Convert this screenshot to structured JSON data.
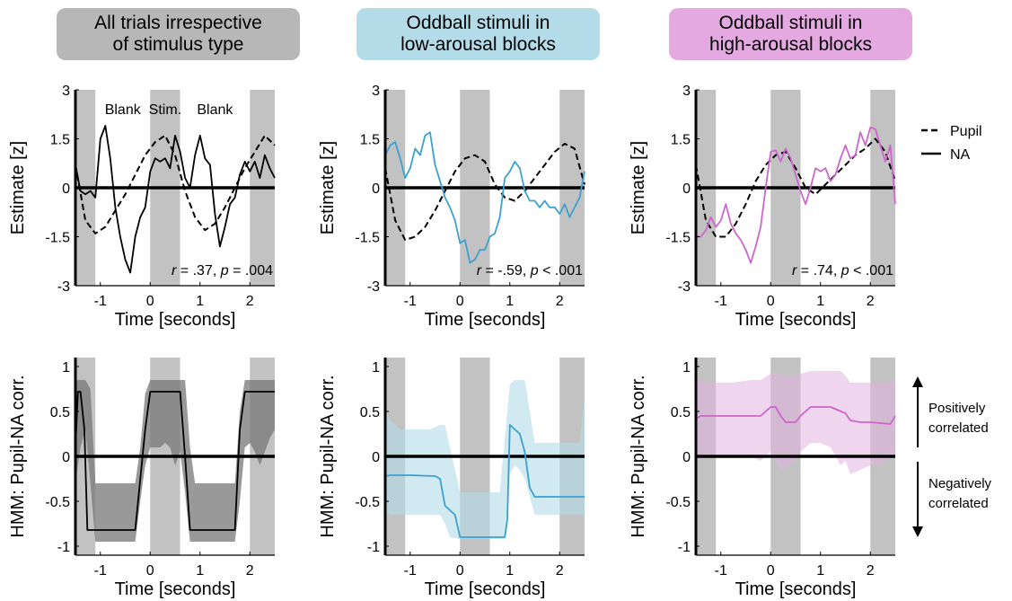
{
  "headers": [
    {
      "line1": "All trials irrespective",
      "line2": "of stimulus type",
      "bg": "#b7b7b7"
    },
    {
      "line1": "Oddball stimuli in",
      "line2": "low-arousal blocks",
      "bg": "#b3dbe8"
    },
    {
      "line1": "Oddball stimuli in",
      "line2": "high-arousal blocks",
      "bg": "#e4a9e0"
    }
  ],
  "colors": {
    "panel1": "#000000",
    "panel2": "#3aa1d0",
    "panel3": "#cc66cc",
    "shade": "#c2c2c2",
    "band1": "#777777",
    "band2": "#b3dbe8",
    "band3": "#e4b2e2"
  },
  "legend": {
    "pupil": "Pupil",
    "na": "NA"
  },
  "side_annotations": {
    "positive": {
      "line1": "Positively",
      "line2": "correlated"
    },
    "negative": {
      "line1": "Negatively",
      "line2": "correlated"
    }
  },
  "chart_data": [
    {
      "type": "line",
      "row": 0,
      "col": 0,
      "xlabel": "Time [seconds]",
      "ylabel": "Estimate [z]",
      "xlim": [
        -1.5,
        2.5
      ],
      "ylim": [
        -3,
        3
      ],
      "xticks": [
        -1,
        0,
        1,
        2
      ],
      "yticks": [
        -3,
        -1.5,
        0,
        1.5,
        3
      ],
      "ytick_labels": [
        "-3",
        "-1.5",
        "0",
        "1.5",
        "3"
      ],
      "shaded_x": [
        [
          -1.5,
          -1.1
        ],
        [
          0,
          0.6
        ],
        [
          2,
          2.5
        ]
      ],
      "period_labels": [
        "Blank",
        "Stim.",
        "Blank"
      ],
      "stat": {
        "r": ".37",
        "p_op": "=",
        "p": ".004"
      },
      "series": [
        {
          "name": "Pupil",
          "style": "dashed",
          "x": [
            -1.5,
            -1.3,
            -1.1,
            -0.9,
            -0.7,
            -0.5,
            -0.3,
            -0.1,
            0.1,
            0.3,
            0.5,
            0.7,
            0.9,
            1.1,
            1.3,
            1.5,
            1.7,
            1.9,
            2.1,
            2.3,
            2.5
          ],
          "y": [
            0.7,
            -1.0,
            -1.4,
            -1.2,
            -0.7,
            -0.2,
            0.4,
            1.0,
            1.4,
            1.6,
            1.0,
            -0.1,
            -0.9,
            -1.3,
            -1.1,
            -0.6,
            0.0,
            0.6,
            1.1,
            1.6,
            1.3
          ]
        },
        {
          "name": "NA",
          "style": "solid",
          "x": [
            -1.5,
            -1.4,
            -1.3,
            -1.2,
            -1.1,
            -1.0,
            -0.9,
            -0.8,
            -0.7,
            -0.6,
            -0.5,
            -0.4,
            -0.3,
            -0.2,
            -0.1,
            0.0,
            0.1,
            0.2,
            0.3,
            0.4,
            0.5,
            0.6,
            0.7,
            0.8,
            0.9,
            1.0,
            1.1,
            1.2,
            1.3,
            1.4,
            1.5,
            1.6,
            1.7,
            1.8,
            1.9,
            2.0,
            2.1,
            2.2,
            2.3,
            2.4,
            2.5
          ],
          "y": [
            0.7,
            -0.1,
            -0.2,
            -0.1,
            -0.3,
            1.5,
            1.9,
            0.9,
            -0.6,
            -1.5,
            -2.2,
            -2.6,
            -1.5,
            -0.9,
            -0.6,
            0.5,
            0.9,
            0.8,
            0.9,
            0.6,
            1.6,
            1.1,
            0.3,
            0.0,
            1.0,
            1.6,
            0.9,
            0.7,
            -0.8,
            -1.8,
            -1.2,
            -0.5,
            -0.3,
            0.4,
            0.8,
            0.5,
            0.8,
            0.3,
            1.0,
            0.6,
            0.3
          ]
        }
      ]
    },
    {
      "type": "line",
      "row": 0,
      "col": 1,
      "xlabel": "Time [seconds]",
      "ylabel": "Estimate [z]",
      "xlim": [
        -1.5,
        2.5
      ],
      "ylim": [
        -3,
        3
      ],
      "xticks": [
        -1,
        0,
        1,
        2
      ],
      "yticks": [
        -3,
        -1.5,
        0,
        1.5,
        3
      ],
      "ytick_labels": [
        "-3",
        "-1.5",
        "0",
        "1.5",
        "3"
      ],
      "shaded_x": [
        [
          -1.5,
          -1.1
        ],
        [
          0,
          0.6
        ],
        [
          2,
          2.5
        ]
      ],
      "stat": {
        "r": "-.59",
        "p_op": "<",
        "p": ".001"
      },
      "series": [
        {
          "name": "Pupil",
          "style": "dashed",
          "x": [
            -1.5,
            -1.3,
            -1.1,
            -0.9,
            -0.7,
            -0.5,
            -0.3,
            -0.1,
            0.1,
            0.3,
            0.5,
            0.7,
            0.9,
            1.1,
            1.3,
            1.5,
            1.7,
            1.9,
            2.1,
            2.3,
            2.5
          ],
          "y": [
            0.6,
            -1.0,
            -1.6,
            -1.5,
            -1.2,
            -0.7,
            -0.1,
            0.5,
            0.9,
            1.0,
            0.8,
            0.1,
            -0.3,
            -0.4,
            -0.1,
            0.3,
            0.7,
            1.1,
            1.35,
            1.2,
            0.1
          ]
        },
        {
          "name": "NA",
          "style": "solid",
          "x": [
            -1.5,
            -1.4,
            -1.3,
            -1.2,
            -1.1,
            -1.0,
            -0.9,
            -0.8,
            -0.7,
            -0.6,
            -0.5,
            -0.4,
            -0.3,
            -0.2,
            -0.1,
            0.0,
            0.1,
            0.2,
            0.3,
            0.4,
            0.5,
            0.6,
            0.7,
            0.8,
            0.9,
            1.0,
            1.1,
            1.2,
            1.3,
            1.4,
            1.5,
            1.6,
            1.7,
            1.8,
            1.9,
            2.0,
            2.1,
            2.2,
            2.3,
            2.4,
            2.5
          ],
          "y": [
            1.0,
            1.3,
            1.4,
            0.9,
            0.3,
            0.6,
            1.2,
            1.0,
            1.6,
            1.7,
            0.7,
            0.2,
            -0.3,
            -0.6,
            -1.0,
            -1.7,
            -1.6,
            -2.3,
            -2.2,
            -1.9,
            -1.9,
            -1.5,
            -1.4,
            -0.9,
            0.3,
            0.5,
            0.8,
            0.6,
            -0.1,
            -0.4,
            -0.4,
            -0.6,
            -0.4,
            -0.6,
            -0.6,
            -0.8,
            -0.5,
            -0.9,
            -0.6,
            -0.3,
            0.5
          ]
        }
      ]
    },
    {
      "type": "line",
      "row": 0,
      "col": 2,
      "xlabel": "Time [seconds]",
      "ylabel": "Estimate [z]",
      "xlim": [
        -1.5,
        2.5
      ],
      "ylim": [
        -3,
        3
      ],
      "xticks": [
        -1,
        0,
        1,
        2
      ],
      "yticks": [
        -3,
        -1.5,
        0,
        1.5,
        3
      ],
      "ytick_labels": [
        "-3",
        "-1.5",
        "0",
        "1.5",
        "3"
      ],
      "shaded_x": [
        [
          -1.5,
          -1.1
        ],
        [
          0,
          0.6
        ],
        [
          2,
          2.5
        ]
      ],
      "stat": {
        "r": ".74",
        "p_op": "<",
        "p": ".001"
      },
      "series": [
        {
          "name": "Pupil",
          "style": "dashed",
          "x": [
            -1.5,
            -1.3,
            -1.1,
            -0.9,
            -0.7,
            -0.5,
            -0.3,
            -0.1,
            0.1,
            0.3,
            0.5,
            0.7,
            0.9,
            1.1,
            1.3,
            1.5,
            1.7,
            1.9,
            2.1,
            2.3,
            2.5
          ],
          "y": [
            0.7,
            -1.0,
            -1.5,
            -1.5,
            -1.1,
            -0.5,
            0.2,
            0.7,
            1.0,
            1.1,
            0.6,
            0.0,
            -0.2,
            0.1,
            0.4,
            0.7,
            1.0,
            1.2,
            1.5,
            1.1,
            0.2
          ]
        },
        {
          "name": "NA",
          "style": "solid",
          "x": [
            -1.5,
            -1.4,
            -1.3,
            -1.2,
            -1.1,
            -1.0,
            -0.9,
            -0.8,
            -0.7,
            -0.6,
            -0.5,
            -0.4,
            -0.3,
            -0.2,
            -0.1,
            0.0,
            0.1,
            0.2,
            0.3,
            0.4,
            0.5,
            0.6,
            0.7,
            0.8,
            0.9,
            1.0,
            1.1,
            1.2,
            1.3,
            1.4,
            1.5,
            1.6,
            1.7,
            1.8,
            1.9,
            2.0,
            2.1,
            2.2,
            2.3,
            2.4,
            2.5
          ],
          "y": [
            -1.5,
            -1.5,
            -1.3,
            -0.9,
            -1.2,
            -1.0,
            -0.5,
            -1.1,
            -1.4,
            -1.6,
            -1.9,
            -2.3,
            -1.8,
            -1.2,
            0.0,
            1.1,
            1.15,
            0.8,
            1.2,
            0.9,
            0.4,
            -0.1,
            -0.5,
            0.0,
            0.6,
            0.5,
            0.6,
            0.2,
            0.4,
            0.9,
            1.3,
            0.9,
            1.0,
            1.7,
            1.3,
            1.85,
            1.8,
            1.3,
            0.8,
            1.3,
            -0.5
          ]
        }
      ]
    },
    {
      "type": "line",
      "row": 1,
      "col": 0,
      "xlabel": "Time [seconds]",
      "ylabel": "HMM: Pupil-NA corr.",
      "xlim": [
        -1.5,
        2.5
      ],
      "ylim": [
        -1.1,
        1.1
      ],
      "xticks": [
        -1,
        0,
        1,
        2
      ],
      "yticks": [
        -1,
        -0.5,
        0,
        0.5,
        1
      ],
      "ytick_labels": [
        "-1",
        "-0.5",
        "0",
        "0.5",
        "1"
      ],
      "shaded_x": [
        [
          -1.5,
          -1.1
        ],
        [
          0,
          0.6
        ],
        [
          2,
          2.5
        ]
      ],
      "series": [
        {
          "name": "HMM",
          "style": "solid",
          "x": [
            -1.5,
            -1.45,
            -1.4,
            -1.32,
            -1.26,
            -1.0,
            -0.5,
            -0.3,
            -0.1,
            0.0,
            0.2,
            0.6,
            0.7,
            0.8,
            0.9,
            1.0,
            1.2,
            1.7,
            1.8,
            1.9,
            2.0,
            2.5
          ],
          "y": [
            0.1,
            0.72,
            0.72,
            0.3,
            -0.82,
            -0.82,
            -0.82,
            -0.82,
            0.3,
            0.72,
            0.72,
            0.72,
            0.0,
            -0.82,
            -0.82,
            -0.82,
            -0.82,
            -0.82,
            0.3,
            0.72,
            0.72,
            0.72
          ],
          "band_x": [
            -1.5,
            -1.4,
            -1.3,
            -1.2,
            -1.1,
            -0.4,
            -0.3,
            -0.2,
            -0.1,
            0.0,
            0.2,
            0.3,
            0.4,
            0.5,
            0.6,
            0.7,
            0.8,
            0.9,
            1.6,
            1.7,
            1.8,
            1.9,
            2.0,
            2.1,
            2.2,
            2.3,
            2.4,
            2.5
          ],
          "band_lower": [
            -0.3,
            0.1,
            0.3,
            -0.3,
            -0.95,
            -0.95,
            -0.95,
            -0.5,
            -0.1,
            0.1,
            0.1,
            0.15,
            0.1,
            -0.1,
            0.05,
            -0.4,
            -0.95,
            -0.95,
            -0.95,
            -0.95,
            -0.5,
            0.1,
            0.15,
            0.05,
            -0.1,
            0.05,
            0.2,
            0.3
          ],
          "band_upper": [
            0.85,
            0.85,
            0.85,
            0.75,
            -0.3,
            -0.3,
            -0.3,
            0.1,
            0.7,
            0.85,
            0.85,
            0.85,
            0.85,
            0.85,
            0.85,
            0.85,
            0.1,
            -0.3,
            -0.3,
            -0.3,
            0.5,
            0.85,
            0.85,
            0.85,
            0.85,
            0.85,
            0.85,
            0.85
          ]
        }
      ]
    },
    {
      "type": "line",
      "row": 1,
      "col": 1,
      "xlabel": "Time [seconds]",
      "ylabel": "HMM: Pupil-NA corr.",
      "xlim": [
        -1.5,
        2.5
      ],
      "ylim": [
        -1.1,
        1.1
      ],
      "xticks": [
        -1,
        0,
        1,
        2
      ],
      "yticks": [
        -1,
        -0.5,
        0,
        0.5,
        1
      ],
      "ytick_labels": [
        "-1",
        "-0.5",
        "0",
        "0.5",
        "1"
      ],
      "shaded_x": [
        [
          -1.5,
          -1.1
        ],
        [
          0,
          0.6
        ],
        [
          2,
          2.5
        ]
      ],
      "series": [
        {
          "name": "HMM",
          "style": "solid",
          "x": [
            -1.5,
            -1.4,
            -1.3,
            -1.0,
            -0.5,
            -0.4,
            -0.3,
            -0.1,
            0.0,
            0.5,
            0.8,
            0.9,
            0.95,
            1.0,
            1.1,
            1.2,
            1.3,
            1.4,
            1.5,
            2.0,
            2.5
          ],
          "y": [
            -0.22,
            -0.21,
            -0.21,
            -0.21,
            -0.22,
            -0.25,
            -0.55,
            -0.65,
            -0.9,
            -0.9,
            -0.9,
            -0.9,
            -0.7,
            0.35,
            0.3,
            0.25,
            0.05,
            -0.35,
            -0.45,
            -0.45,
            -0.45
          ],
          "band_x": [
            -1.5,
            -1.4,
            -1.2,
            -1.0,
            -0.8,
            -0.6,
            -0.4,
            -0.3,
            -0.2,
            0.0,
            0.5,
            0.8,
            0.9,
            1.0,
            1.1,
            1.2,
            1.3,
            1.4,
            1.5,
            1.8,
            2.0,
            2.2,
            2.4,
            2.5
          ],
          "band_lower": [
            -0.6,
            -0.65,
            -0.65,
            -0.65,
            -0.65,
            -0.65,
            -0.65,
            -0.75,
            -0.9,
            -0.92,
            -0.92,
            -0.92,
            -0.92,
            -0.2,
            -0.1,
            -0.15,
            -0.25,
            -0.45,
            -0.65,
            -0.65,
            -0.65,
            -0.65,
            -0.65,
            -0.65
          ],
          "band_upper": [
            0.55,
            0.4,
            0.3,
            0.3,
            0.3,
            0.3,
            0.35,
            0.35,
            0.1,
            -0.4,
            -0.4,
            -0.4,
            0.2,
            0.8,
            0.85,
            0.85,
            0.85,
            0.5,
            0.15,
            0.15,
            0.15,
            0.15,
            0.15,
            0.65
          ]
        }
      ]
    },
    {
      "type": "line",
      "row": 1,
      "col": 2,
      "xlabel": "Time [seconds]",
      "ylabel": "HMM: Pupil-NA corr.",
      "xlim": [
        -1.5,
        2.5
      ],
      "ylim": [
        -1.1,
        1.1
      ],
      "xticks": [
        -1,
        0,
        1,
        2
      ],
      "yticks": [
        -1,
        -0.5,
        0,
        0.5,
        1
      ],
      "ytick_labels": [
        "-1",
        "-0.5",
        "0",
        "0.5",
        "1"
      ],
      "shaded_x": [
        [
          -1.5,
          -1.1
        ],
        [
          0,
          0.6
        ],
        [
          2,
          2.5
        ]
      ],
      "series": [
        {
          "name": "HMM",
          "style": "solid",
          "x": [
            -1.5,
            -1.4,
            -1.2,
            -0.8,
            -0.5,
            -0.2,
            -0.1,
            0.0,
            0.1,
            0.2,
            0.3,
            0.5,
            0.6,
            0.8,
            1.0,
            1.2,
            1.5,
            1.6,
            1.8,
            2.0,
            2.2,
            2.4,
            2.5
          ],
          "y": [
            0.42,
            0.45,
            0.45,
            0.45,
            0.45,
            0.45,
            0.5,
            0.55,
            0.55,
            0.45,
            0.38,
            0.38,
            0.45,
            0.55,
            0.55,
            0.55,
            0.48,
            0.4,
            0.38,
            0.38,
            0.37,
            0.36,
            0.45
          ],
          "band_x": [
            -1.5,
            -1.2,
            -0.8,
            -0.4,
            -0.2,
            0.0,
            0.1,
            0.2,
            0.4,
            0.6,
            0.8,
            1.0,
            1.2,
            1.4,
            1.5,
            1.6,
            1.8,
            2.0,
            2.2,
            2.4,
            2.5
          ],
          "band_lower": [
            -0.05,
            0.0,
            0.0,
            0.0,
            -0.05,
            0.05,
            -0.05,
            -0.15,
            -0.1,
            0.05,
            0.15,
            0.15,
            0.1,
            -0.1,
            -0.05,
            -0.2,
            -0.15,
            -0.1,
            -0.1,
            0.0,
            0.0
          ],
          "band_upper": [
            0.85,
            0.82,
            0.82,
            0.85,
            0.85,
            0.92,
            0.95,
            0.92,
            0.88,
            0.92,
            0.95,
            0.95,
            0.95,
            0.95,
            0.9,
            0.82,
            0.82,
            0.82,
            0.82,
            0.82,
            0.85
          ]
        }
      ]
    }
  ]
}
